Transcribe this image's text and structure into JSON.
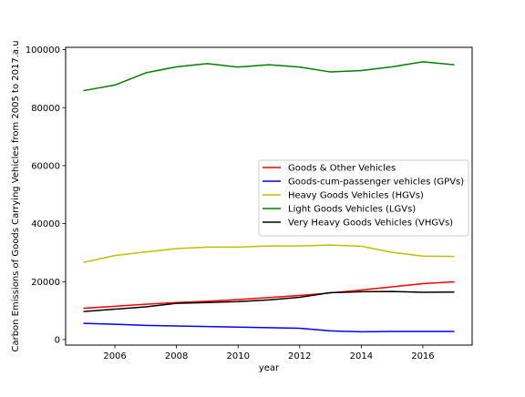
{
  "chart_data": {
    "type": "line",
    "xlabel": "year",
    "ylabel": "Carbon Emissions of Goods Carrying Vehicles from 2005 to 2017.a.u",
    "xlim": [
      2004.4,
      2017.6
    ],
    "ylim": [
      -1900,
      100800
    ],
    "x_ticks": [
      2006,
      2008,
      2010,
      2012,
      2014,
      2016
    ],
    "y_ticks": [
      0,
      20000,
      40000,
      60000,
      80000,
      100000
    ],
    "legend_position": "center-right",
    "grid": false,
    "x": [
      2005,
      2006,
      2007,
      2008,
      2009,
      2010,
      2011,
      2012,
      2013,
      2014,
      2015,
      2016,
      2017
    ],
    "series": [
      {
        "name": "Goods & Other Vehicles",
        "color": "#ff0000",
        "values": [
          10800,
          11500,
          12200,
          12800,
          13200,
          13800,
          14500,
          15200,
          16100,
          17100,
          18200,
          19300,
          19900
        ]
      },
      {
        "name": "Goods-cum-passenger vehicles (GPVs)",
        "color": "#0000ff",
        "values": [
          5600,
          5300,
          4900,
          4700,
          4500,
          4300,
          4100,
          3900,
          3000,
          2700,
          2800,
          2800,
          2800
        ]
      },
      {
        "name": "Heavy Goods Vehicles (HGVs)",
        "color": "#bfbf00",
        "values": [
          26700,
          29000,
          30200,
          31400,
          31900,
          31900,
          32300,
          32300,
          32600,
          32200,
          30100,
          28800,
          28700
        ]
      },
      {
        "name": "Light Goods Vehicles (LGVs)",
        "color": "#008000",
        "values": [
          85900,
          87800,
          92000,
          94100,
          95200,
          94000,
          94800,
          94000,
          92300,
          92800,
          94100,
          95800,
          94800
        ]
      },
      {
        "name": "Very Heavy Goods Vehicles (VHGVs)",
        "color": "#000000",
        "values": [
          9700,
          10500,
          11300,
          12500,
          12800,
          13100,
          13700,
          14600,
          16200,
          16500,
          16600,
          16300,
          16400
        ]
      }
    ]
  }
}
